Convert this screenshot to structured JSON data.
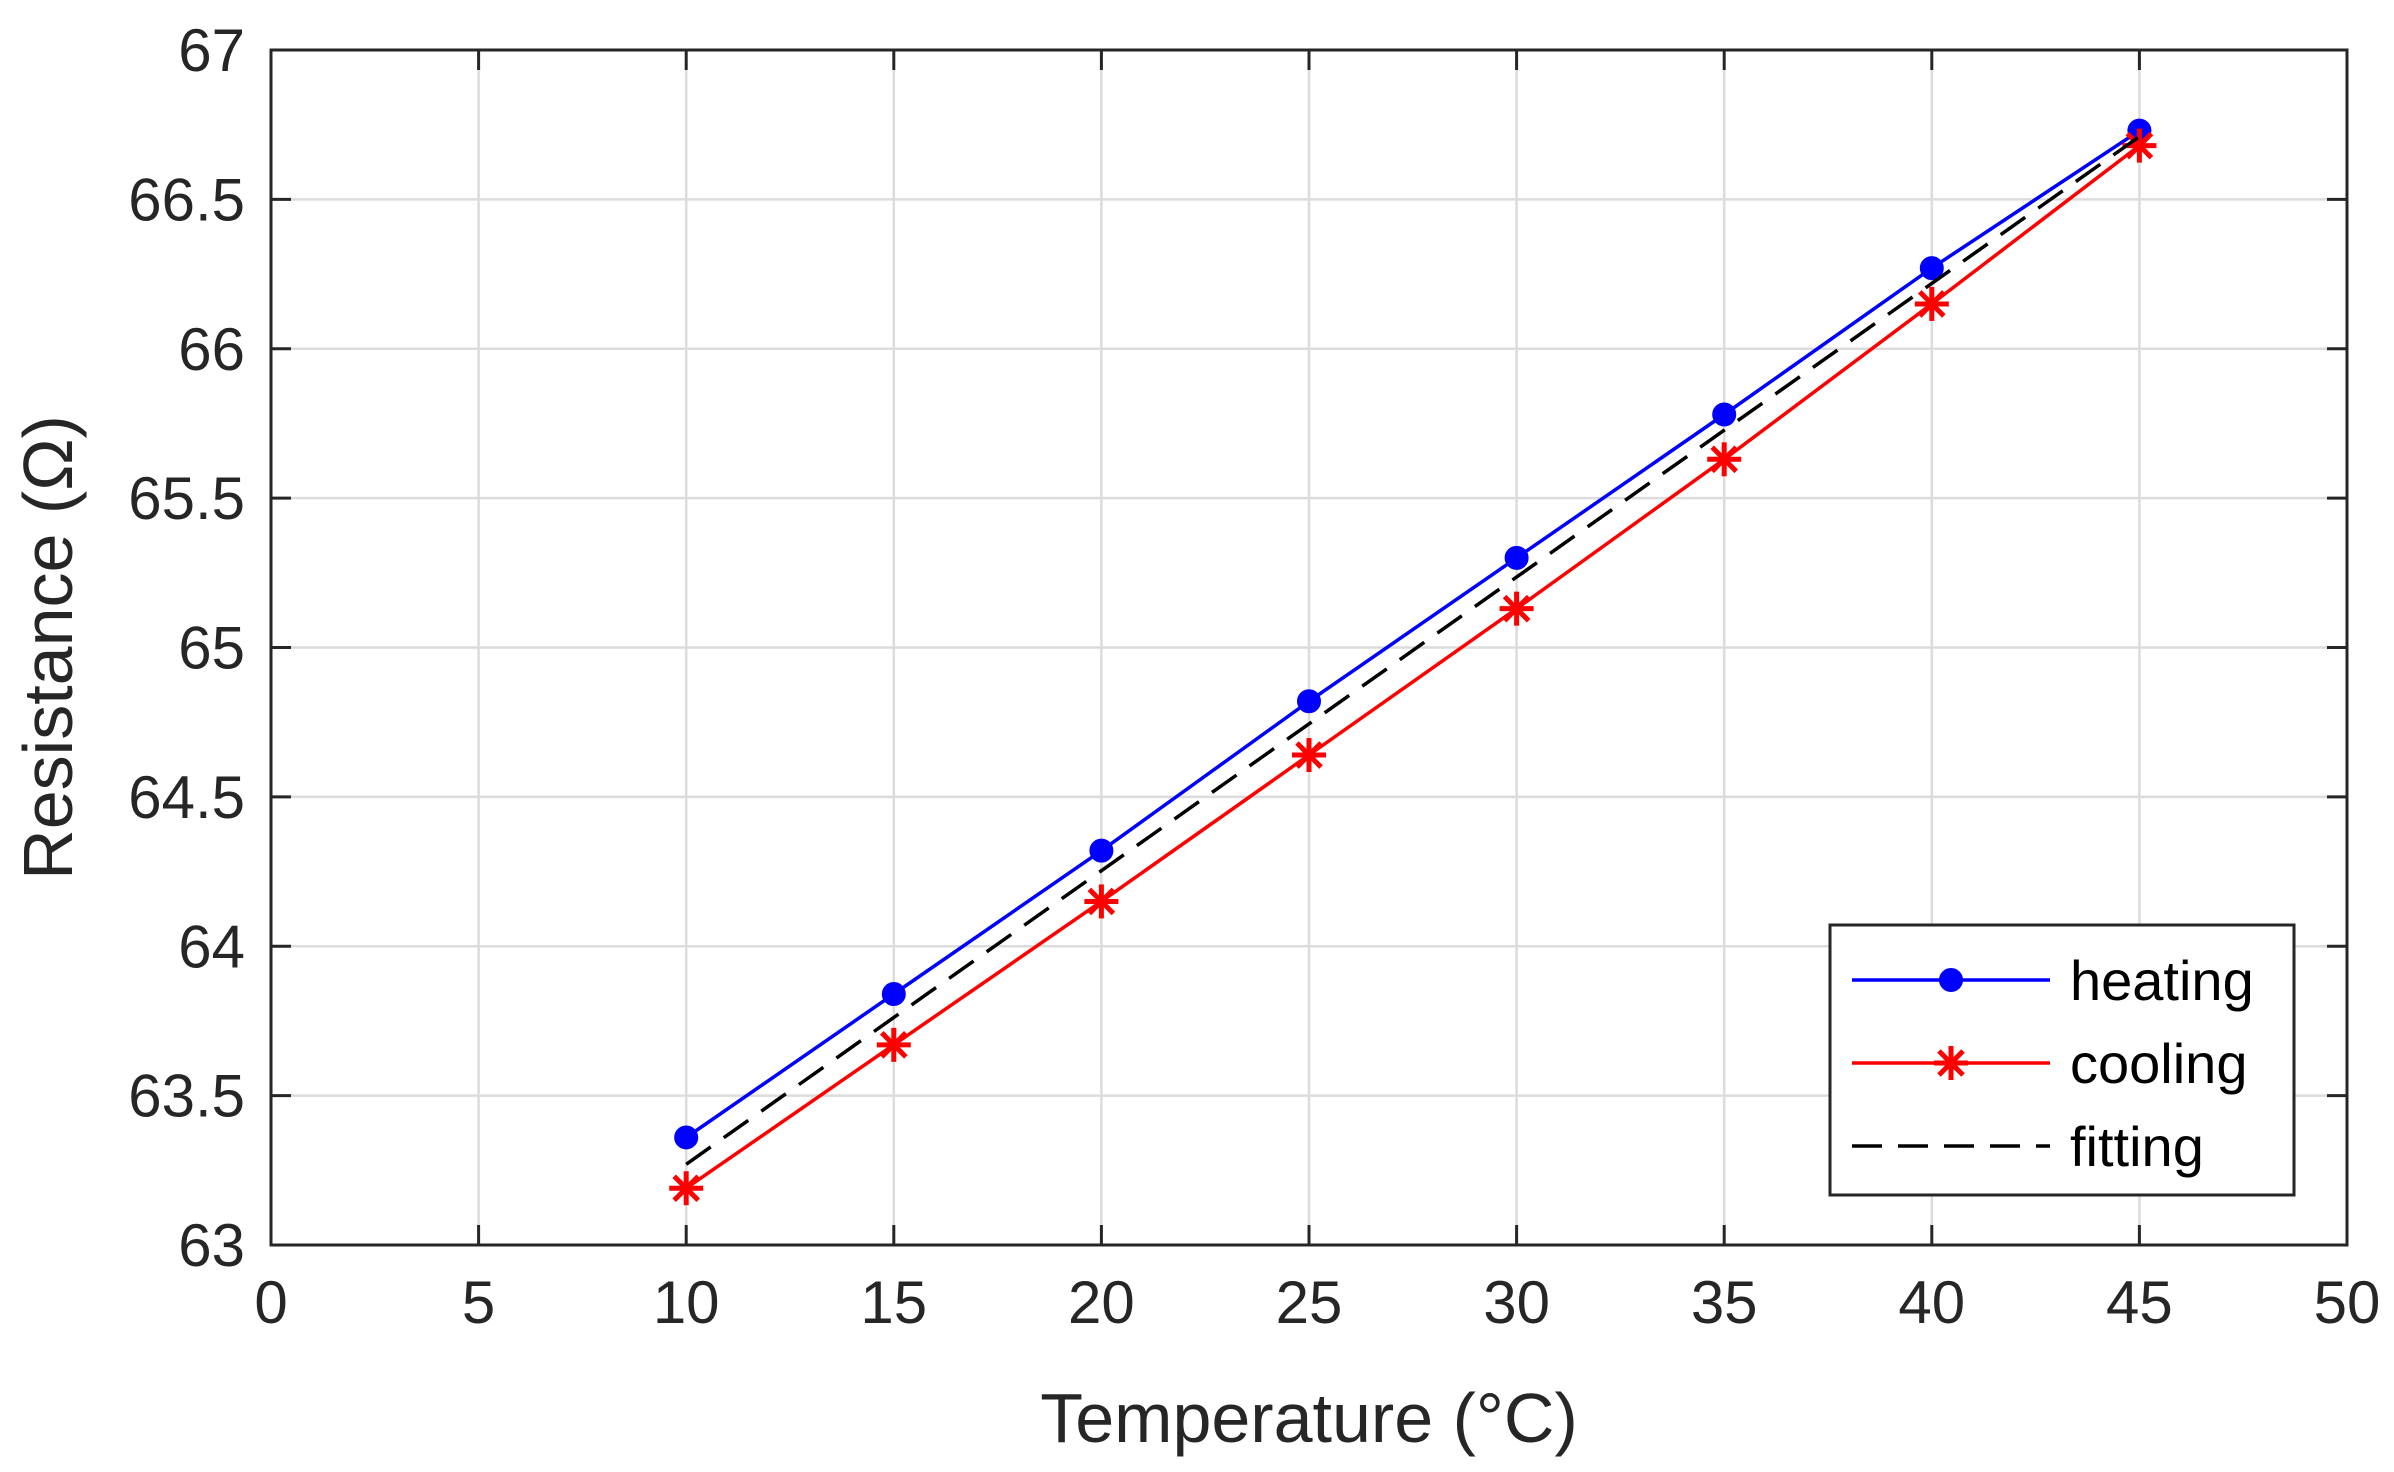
{
  "chart_data": {
    "type": "line",
    "title": "",
    "xlabel": "Temperature (°C)",
    "ylabel": "Resistance (Ω)",
    "xlim": [
      0,
      50
    ],
    "ylim": [
      63,
      67
    ],
    "xticks": [
      0,
      5,
      10,
      15,
      20,
      25,
      30,
      35,
      40,
      45,
      50
    ],
    "yticks": [
      63,
      63.5,
      64,
      64.5,
      65,
      65.5,
      66,
      66.5,
      67
    ],
    "xtick_labels": [
      "0",
      "5",
      "10",
      "15",
      "20",
      "25",
      "30",
      "35",
      "40",
      "45",
      "50"
    ],
    "ytick_labels": [
      "63",
      "63.5",
      "64",
      "64.5",
      "65",
      "65.5",
      "66",
      "66.5",
      "67"
    ],
    "grid": true,
    "legend_position": "bottom-right",
    "series": [
      {
        "name": "heating",
        "color": "#0000ff",
        "marker": "dot",
        "line": "solid",
        "x": [
          10,
          15,
          20,
          25,
          30,
          35,
          40,
          45
        ],
        "y": [
          63.36,
          63.84,
          64.32,
          64.82,
          65.3,
          65.78,
          66.27,
          66.73
        ]
      },
      {
        "name": "cooling",
        "color": "#ff0000",
        "marker": "asterisk",
        "line": "solid",
        "x": [
          10,
          15,
          20,
          25,
          30,
          35,
          40,
          45
        ],
        "y": [
          63.19,
          63.67,
          64.15,
          64.64,
          65.13,
          65.63,
          66.15,
          66.68
        ]
      },
      {
        "name": "fitting",
        "color": "#000000",
        "marker": "none",
        "line": "dashed",
        "x": [
          10,
          45
        ],
        "y": [
          63.27,
          66.71
        ]
      }
    ]
  }
}
